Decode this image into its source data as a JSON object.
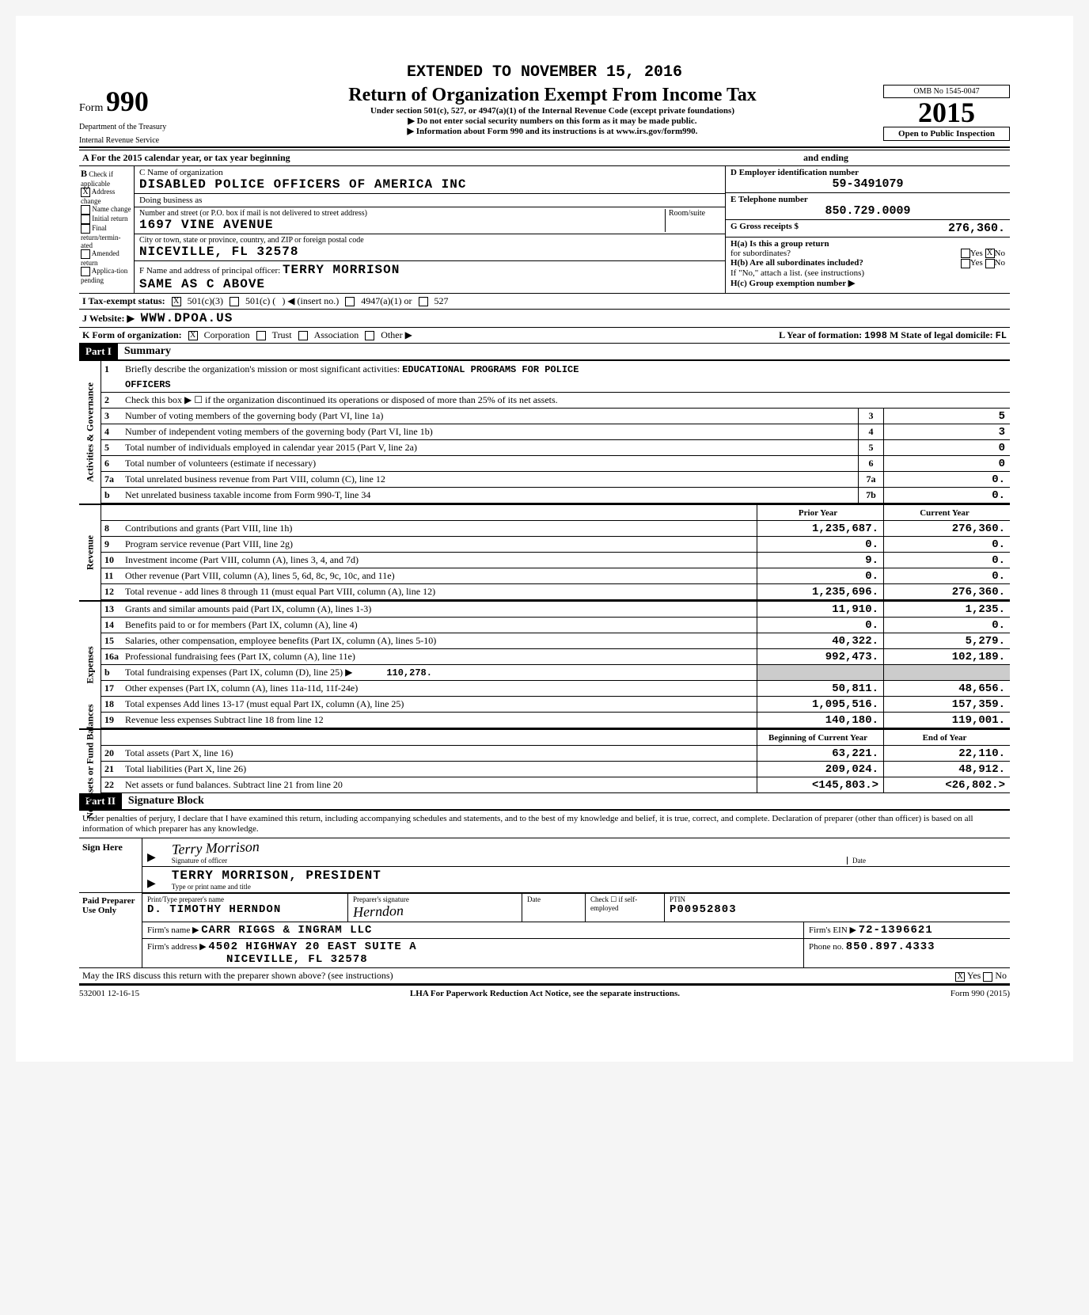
{
  "header": {
    "extended": "EXTENDED TO NOVEMBER 15, 2016",
    "form_prefix": "Form",
    "form_number": "990",
    "dept1": "Department of the Treasury",
    "dept2": "Internal Revenue Service",
    "title": "Return of Organization Exempt From Income Tax",
    "subtitle": "Under section 501(c), 527, or 4947(a)(1) of the Internal Revenue Code (except private foundations)",
    "arrow1": "▶ Do not enter social security numbers on this form as it may be made public.",
    "arrow2": "▶ Information about Form 990 and its instructions is at www.irs.gov/form990.",
    "omb": "OMB No 1545-0047",
    "year": "2015",
    "open_pub": "Open to Public Inspection"
  },
  "row_a": {
    "text_left": "A For the 2015 calendar year, or tax year beginning",
    "text_right": "and ending"
  },
  "col_b": {
    "header": "B",
    "sub": "Check if applicable",
    "items": [
      {
        "checked": true,
        "label": "Address change"
      },
      {
        "checked": false,
        "label": "Name change"
      },
      {
        "checked": false,
        "label": "Initial return"
      },
      {
        "checked": false,
        "label": "Final return/termin-ated"
      },
      {
        "checked": false,
        "label": "Amended return"
      },
      {
        "checked": false,
        "label": "Applica-tion pending"
      }
    ]
  },
  "col_c": {
    "c_label": "C Name of organization",
    "org_name": "DISABLED POLICE OFFICERS OF AMERICA INC",
    "dba_label": "Doing business as",
    "addr_label": "Number and street (or P.O. box if mail is not delivered to street address)",
    "room_label": "Room/suite",
    "street": "1697 VINE AVENUE",
    "city_label": "City or town, state or province, country, and ZIP or foreign postal code",
    "city": "NICEVILLE, FL  32578",
    "f_label": "F Name and address of principal officer:",
    "f_name": "TERRY MORRISON",
    "f_addr": "SAME AS C ABOVE"
  },
  "col_d": {
    "d_label": "D Employer identification number",
    "ein": "59-3491079",
    "e_label": "E Telephone number",
    "phone": "850.729.0009",
    "g_label": "G Gross receipts $",
    "gross": "276,360.",
    "ha_label": "H(a) Is this a group return",
    "ha_sub": "for subordinates?",
    "ha_yes": "Yes",
    "ha_no_x": "X",
    "ha_no": "No",
    "hb_label": "H(b) Are all subordinates included?",
    "hb_yes": "Yes",
    "hb_no": "No",
    "hb_note": "If \"No,\" attach a list. (see instructions)",
    "hc_label": "H(c) Group exemption number ▶"
  },
  "row_i": {
    "label": "I Tax-exempt status:",
    "c3_x": "X",
    "c3": "501(c)(3)",
    "c_other": "501(c) (",
    "c_insert": ") ◀ (insert no.)",
    "a4947": "4947(a)(1) or",
    "s527": "527"
  },
  "row_j": {
    "label": "J Website: ▶",
    "value": "WWW.DPOA.US"
  },
  "row_k": {
    "label": "K Form of organization:",
    "corp_x": "X",
    "corp": "Corporation",
    "trust": "Trust",
    "assoc": "Association",
    "other": "Other ▶",
    "l_label": "L Year of formation:",
    "l_year": "1998",
    "m_label": "M State of legal domicile:",
    "m_state": "FL"
  },
  "part1": {
    "hdr": "Part I",
    "title": "Summary"
  },
  "governance": {
    "vlabel": "Activities & Governance",
    "line1_num": "1",
    "line1_desc": "Briefly describe the organization's mission or most significant activities:",
    "line1_val": "EDUCATIONAL PROGRAMS FOR POLICE",
    "line1_cont": "OFFICERS",
    "line2_num": "2",
    "line2_desc": "Check this box ▶ ☐ if the organization discontinued its operations or disposed of more than 25% of its net assets.",
    "lines": [
      {
        "num": "3",
        "desc": "Number of voting members of the governing body (Part VI, line 1a)",
        "box": "3",
        "val": "5"
      },
      {
        "num": "4",
        "desc": "Number of independent voting members of the governing body (Part VI, line 1b)",
        "box": "4",
        "val": "3"
      },
      {
        "num": "5",
        "desc": "Total number of individuals employed in calendar year 2015 (Part V, line 2a)",
        "box": "5",
        "val": "0"
      },
      {
        "num": "6",
        "desc": "Total number of volunteers (estimate if necessary)",
        "box": "6",
        "val": "0"
      },
      {
        "num": "7a",
        "desc": "Total unrelated business revenue from Part VIII, column (C), line 12",
        "box": "7a",
        "val": "0."
      },
      {
        "num": "b",
        "desc": "Net unrelated business taxable income from Form 990-T, line 34",
        "box": "7b",
        "val": "0."
      }
    ]
  },
  "revenue": {
    "vlabel": "Revenue",
    "hdr_prior": "Prior Year",
    "hdr_current": "Current Year",
    "lines": [
      {
        "num": "8",
        "desc": "Contributions and grants (Part VIII, line 1h)",
        "prior": "1,235,687.",
        "current": "276,360."
      },
      {
        "num": "9",
        "desc": "Program service revenue (Part VIII, line 2g)",
        "prior": "0.",
        "current": "0."
      },
      {
        "num": "10",
        "desc": "Investment income (Part VIII, column (A), lines 3, 4, and 7d)",
        "prior": "9.",
        "current": "0."
      },
      {
        "num": "11",
        "desc": "Other revenue (Part VIII, column (A), lines 5, 6d, 8c, 9c, 10c, and 11e)",
        "prior": "0.",
        "current": "0."
      },
      {
        "num": "12",
        "desc": "Total revenue - add lines 8 through 11 (must equal Part VIII, column (A), line 12)",
        "prior": "1,235,696.",
        "current": "276,360."
      }
    ]
  },
  "expenses": {
    "vlabel": "Expenses",
    "lines": [
      {
        "num": "13",
        "desc": "Grants and similar amounts paid (Part IX, column (A), lines 1-3)",
        "prior": "11,910.",
        "current": "1,235."
      },
      {
        "num": "14",
        "desc": "Benefits paid to or for members (Part IX, column (A), line 4)",
        "prior": "0.",
        "current": "0."
      },
      {
        "num": "15",
        "desc": "Salaries, other compensation, employee benefits (Part IX, column (A), lines 5-10)",
        "prior": "40,322.",
        "current": "5,279."
      },
      {
        "num": "16a",
        "desc": "Professional fundraising fees (Part IX, column (A), line 11e)",
        "prior": "992,473.",
        "current": "102,189."
      }
    ],
    "line16b_num": "b",
    "line16b_desc": "Total fundraising expenses (Part IX, column (D), line 25) ▶",
    "line16b_val": "110,278.",
    "lines2": [
      {
        "num": "17",
        "desc": "Other expenses (Part IX, column (A), lines 11a-11d, 11f-24e)",
        "prior": "50,811.",
        "current": "48,656."
      },
      {
        "num": "18",
        "desc": "Total expenses Add lines 13-17 (must equal Part IX, column (A), line 25)",
        "prior": "1,095,516.",
        "current": "157,359."
      },
      {
        "num": "19",
        "desc": "Revenue less expenses Subtract line 18 from line 12",
        "prior": "140,180.",
        "current": "119,001."
      }
    ]
  },
  "netassets": {
    "vlabel": "Net Assets or Fund Balances",
    "hdr_beg": "Beginning of Current Year",
    "hdr_end": "End of Year",
    "lines": [
      {
        "num": "20",
        "desc": "Total assets (Part X, line 16)",
        "prior": "63,221.",
        "current": "22,110."
      },
      {
        "num": "21",
        "desc": "Total liabilities (Part X, line 26)",
        "prior": "209,024.",
        "current": "48,912."
      },
      {
        "num": "22",
        "desc": "Net assets or fund balances. Subtract line 21 from line 20",
        "prior": "<145,803.>",
        "current": "<26,802.>"
      }
    ]
  },
  "part2": {
    "hdr": "Part II",
    "title": "Signature Block",
    "decl": "Under penalties of perjury, I declare that I have examined this return, including accompanying schedules and statements, and to the best of my knowledge and belief, it is true, correct, and complete. Declaration of preparer (other than officer) is based on all information of which preparer has any knowledge."
  },
  "sign": {
    "left": "Sign Here",
    "arrow": "▶",
    "sig_scrawl": "Terry Morrison",
    "sig_label": "Signature of officer",
    "date_label": "Date",
    "name": "TERRY MORRISON, PRESIDENT",
    "name_label": "Type or print name and title"
  },
  "paid": {
    "left": "Paid Preparer Use Only",
    "prep_name_label": "Print/Type preparer's name",
    "prep_name": "D. TIMOTHY HERNDON",
    "prep_sig_label": "Preparer's signature",
    "date_label": "Date",
    "check_label": "Check ☐ if self-employed",
    "ptin_label": "PTIN",
    "ptin": "P00952803",
    "firm_name_label": "Firm's name ▶",
    "firm_name": "CARR RIGGS & INGRAM LLC",
    "firm_ein_label": "Firm's EIN ▶",
    "firm_ein": "72-1396621",
    "firm_addr_label": "Firm's address ▶",
    "firm_addr1": "4502 HIGHWAY 20 EAST SUITE A",
    "firm_addr2": "NICEVILLE, FL 32578",
    "phone_label": "Phone no.",
    "phone": "850.897.4333"
  },
  "discuss": {
    "text": "May the IRS discuss this return with the preparer shown above? (see instructions)",
    "yes_x": "X",
    "yes": "Yes",
    "no": "No"
  },
  "footer": {
    "left": "532001 12-16-15",
    "center": "LHA For Paperwork Reduction Act Notice, see the separate instructions.",
    "right": "Form 990 (2015)"
  },
  "colors": {
    "page_bg": "#ffffff",
    "text": "#000000",
    "part_hdr_bg": "#000000",
    "part_hdr_fg": "#ffffff"
  }
}
